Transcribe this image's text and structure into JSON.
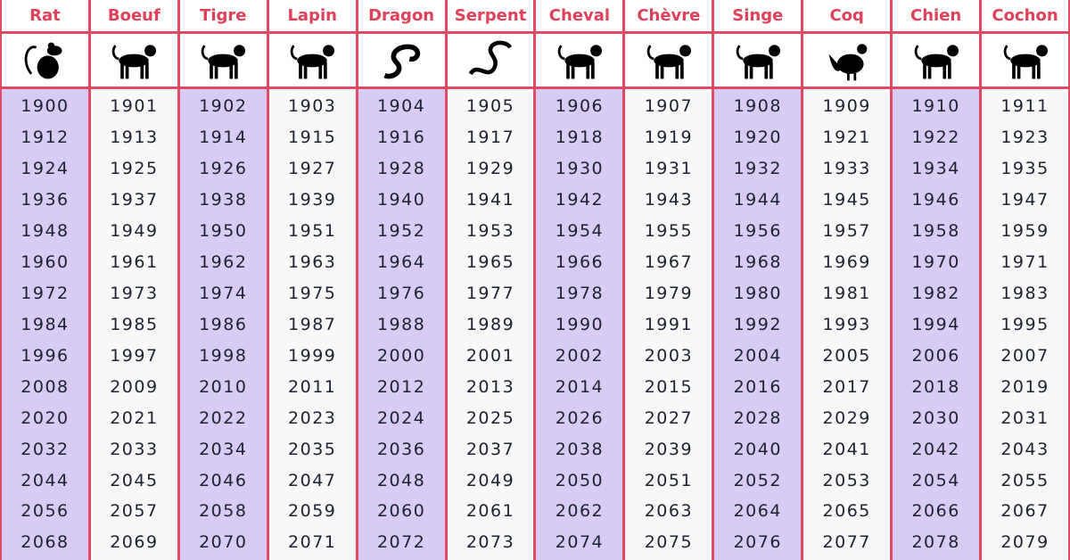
{
  "colors": {
    "border": "#e14a64",
    "header_text": "#e0405a",
    "purple": "#d8cbf6",
    "white": "#f8f8f8"
  },
  "columns": [
    {
      "label": "Rat",
      "icon": "rat-icon",
      "years": [
        "1900",
        "1912",
        "1924",
        "1936",
        "1948",
        "1960",
        "1972",
        "1984",
        "1996",
        "2008",
        "2020",
        "2032",
        "2044",
        "2056",
        "2068"
      ]
    },
    {
      "label": "Boeuf",
      "icon": "ox-icon",
      "years": [
        "1901",
        "1913",
        "1925",
        "1937",
        "1949",
        "1961",
        "1973",
        "1985",
        "1997",
        "2009",
        "2021",
        "2033",
        "2045",
        "2057",
        "2069"
      ]
    },
    {
      "label": "Tigre",
      "icon": "tiger-icon",
      "years": [
        "1902",
        "1914",
        "1926",
        "1938",
        "1950",
        "1962",
        "1974",
        "1986",
        "1998",
        "2010",
        "2022",
        "2034",
        "2046",
        "2058",
        "2070"
      ]
    },
    {
      "label": "Lapin",
      "icon": "rabbit-icon",
      "years": [
        "1903",
        "1915",
        "1927",
        "1939",
        "1951",
        "1963",
        "1975",
        "1987",
        "1999",
        "2011",
        "2023",
        "2035",
        "2047",
        "2059",
        "2071"
      ]
    },
    {
      "label": "Dragon",
      "icon": "dragon-icon",
      "years": [
        "1904",
        "1916",
        "1928",
        "1940",
        "1952",
        "1964",
        "1976",
        "1988",
        "2000",
        "2012",
        "2024",
        "2036",
        "2048",
        "2060",
        "2072"
      ]
    },
    {
      "label": "Serpent",
      "icon": "snake-icon",
      "years": [
        "1905",
        "1917",
        "1929",
        "1941",
        "1953",
        "1965",
        "1977",
        "1989",
        "2001",
        "2013",
        "2025",
        "2037",
        "2049",
        "2061",
        "2073"
      ]
    },
    {
      "label": "Cheval",
      "icon": "horse-icon",
      "years": [
        "1906",
        "1918",
        "1930",
        "1942",
        "1954",
        "1966",
        "1978",
        "1990",
        "2002",
        "2014",
        "2026",
        "2038",
        "2050",
        "2062",
        "2074"
      ]
    },
    {
      "label": "Chèvre",
      "icon": "goat-icon",
      "years": [
        "1907",
        "1919",
        "1931",
        "1943",
        "1955",
        "1967",
        "1979",
        "1991",
        "2003",
        "2015",
        "2027",
        "2039",
        "2051",
        "2063",
        "2075"
      ]
    },
    {
      "label": "Singe",
      "icon": "monkey-icon",
      "years": [
        "1908",
        "1920",
        "1932",
        "1944",
        "1956",
        "1968",
        "1980",
        "1992",
        "2004",
        "2016",
        "2028",
        "2040",
        "2052",
        "2064",
        "2076"
      ]
    },
    {
      "label": "Coq",
      "icon": "rooster-icon",
      "years": [
        "1909",
        "1921",
        "1933",
        "1945",
        "1957",
        "1969",
        "1981",
        "1993",
        "2005",
        "2017",
        "2029",
        "2041",
        "2053",
        "2065",
        "2077"
      ]
    },
    {
      "label": "Chien",
      "icon": "dog-icon",
      "years": [
        "1910",
        "1922",
        "1934",
        "1946",
        "1958",
        "1970",
        "1982",
        "1994",
        "2006",
        "2018",
        "2030",
        "2042",
        "2054",
        "2066",
        "2078"
      ]
    },
    {
      "label": "Cochon",
      "icon": "pig-icon",
      "years": [
        "1911",
        "1923",
        "1935",
        "1947",
        "1959",
        "1971",
        "1983",
        "1995",
        "2007",
        "2019",
        "2031",
        "2043",
        "2055",
        "2067",
        "2079"
      ]
    }
  ]
}
